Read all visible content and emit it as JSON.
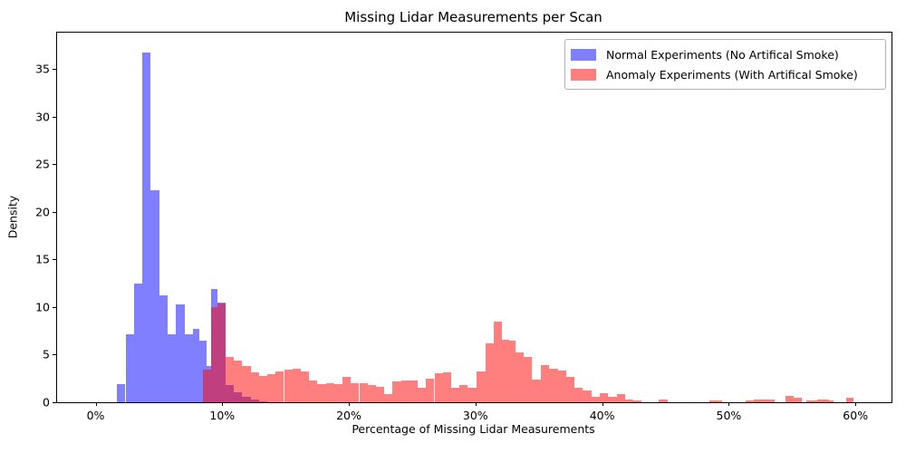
{
  "title": "Missing Lidar Measurements per Scan",
  "xlabel": "Percentage of Missing Lidar Measurements",
  "ylabel": "Density",
  "legend": [
    {
      "label": "Normal Experiments (No Artifical Smoke)",
      "color": "rgba(0,0,255,0.5)"
    },
    {
      "label": "Anomaly Experiments (With Artifical Smoke)",
      "color": "rgba(255,0,0,0.5)"
    }
  ],
  "chart_data": {
    "type": "bar",
    "subtype": "overlaid-histograms",
    "title": "Missing Lidar Measurements per Scan",
    "xlabel": "Percentage of Missing Lidar Measurements",
    "ylabel": "Density",
    "xlim": [
      -3.04,
      62.85
    ],
    "ylim": [
      0,
      38.8
    ],
    "grid": false,
    "legend_position": "upper right",
    "x_ticks": [
      {
        "value": 0,
        "label": "0%"
      },
      {
        "value": 10,
        "label": "10%"
      },
      {
        "value": 20,
        "label": "20%"
      },
      {
        "value": 30,
        "label": "30%"
      },
      {
        "value": 40,
        "label": "40%"
      },
      {
        "value": 50,
        "label": "50%"
      },
      {
        "value": 60,
        "label": "60%"
      }
    ],
    "y_ticks": [
      {
        "value": 0,
        "label": "0"
      },
      {
        "value": 5,
        "label": "5"
      },
      {
        "value": 10,
        "label": "10"
      },
      {
        "value": 15,
        "label": "15"
      },
      {
        "value": 20,
        "label": "20"
      },
      {
        "value": 25,
        "label": "25"
      },
      {
        "value": 30,
        "label": "30"
      },
      {
        "value": 35,
        "label": "35"
      }
    ],
    "series": [
      {
        "name": "Normal Experiments (No Artifical Smoke)",
        "color": "rgba(0,0,255,0.5)",
        "bars": [
          [
            1.7,
            2.36,
            1.9
          ],
          [
            2.36,
            3.03,
            7.1
          ],
          [
            3.03,
            3.69,
            12.5
          ],
          [
            3.69,
            4.36,
            36.7
          ],
          [
            4.36,
            5.02,
            22.3
          ],
          [
            5.02,
            5.69,
            11.2
          ],
          [
            5.69,
            6.35,
            7.1
          ],
          [
            6.35,
            7.02,
            10.3
          ],
          [
            7.02,
            7.68,
            7.1
          ],
          [
            7.68,
            8.21,
            7.7
          ],
          [
            8.21,
            8.73,
            6.5
          ],
          [
            8.73,
            9.1,
            3.8
          ],
          [
            9.1,
            9.62,
            11.9
          ],
          [
            9.62,
            10.26,
            10.5
          ],
          [
            10.26,
            10.92,
            1.8
          ],
          [
            10.92,
            11.58,
            1.05
          ],
          [
            11.58,
            12.24,
            0.55
          ],
          [
            12.24,
            12.9,
            0.25
          ],
          [
            12.9,
            13.56,
            0.1
          ]
        ]
      },
      {
        "name": "Anomaly Experiments (With Artifical Smoke)",
        "color": "rgba(255,0,0,0.5)",
        "bars": [
          [
            8.45,
            9.1,
            3.45
          ],
          [
            9.1,
            9.62,
            10.0
          ],
          [
            9.62,
            10.26,
            10.4
          ],
          [
            10.26,
            10.92,
            4.75
          ],
          [
            10.92,
            11.58,
            4.4
          ],
          [
            11.58,
            12.24,
            3.8
          ],
          [
            12.24,
            12.9,
            3.15
          ],
          [
            12.9,
            13.56,
            2.8
          ],
          [
            13.56,
            14.22,
            3.0
          ],
          [
            14.22,
            14.88,
            3.2
          ],
          [
            14.88,
            15.54,
            3.45
          ],
          [
            15.54,
            16.2,
            3.5
          ],
          [
            16.2,
            16.86,
            3.2
          ],
          [
            16.86,
            17.52,
            2.25
          ],
          [
            17.52,
            18.18,
            1.95
          ],
          [
            18.18,
            18.84,
            2.0
          ],
          [
            18.84,
            19.5,
            1.95
          ],
          [
            19.5,
            20.16,
            2.65
          ],
          [
            20.16,
            20.82,
            2.0
          ],
          [
            20.82,
            21.48,
            2.0
          ],
          [
            21.48,
            22.14,
            1.85
          ],
          [
            22.14,
            22.8,
            1.6
          ],
          [
            22.8,
            23.46,
            0.9
          ],
          [
            23.46,
            24.12,
            2.2
          ],
          [
            24.12,
            24.78,
            2.25
          ],
          [
            24.78,
            25.44,
            2.25
          ],
          [
            25.44,
            26.1,
            1.55
          ],
          [
            26.1,
            26.76,
            2.5
          ],
          [
            26.76,
            27.42,
            3.05
          ],
          [
            27.42,
            28.08,
            3.1
          ],
          [
            28.08,
            28.74,
            1.55
          ],
          [
            28.74,
            29.4,
            1.8
          ],
          [
            29.4,
            30.1,
            1.55
          ],
          [
            30.1,
            30.77,
            3.2
          ],
          [
            30.77,
            31.44,
            6.2
          ],
          [
            31.44,
            32.1,
            8.5
          ],
          [
            32.1,
            32.64,
            6.6
          ],
          [
            32.64,
            33.14,
            6.45
          ],
          [
            33.14,
            33.81,
            5.2
          ],
          [
            33.81,
            34.48,
            4.75
          ],
          [
            34.48,
            35.15,
            2.35
          ],
          [
            35.15,
            35.82,
            3.95
          ],
          [
            35.82,
            36.49,
            3.5
          ],
          [
            36.49,
            37.15,
            3.3
          ],
          [
            37.15,
            37.81,
            2.65
          ],
          [
            37.81,
            38.48,
            1.55
          ],
          [
            38.48,
            39.14,
            1.25
          ],
          [
            39.14,
            39.81,
            0.6
          ],
          [
            39.81,
            40.47,
            1.0
          ],
          [
            40.47,
            41.14,
            0.6
          ],
          [
            41.14,
            41.8,
            0.85
          ],
          [
            41.8,
            42.47,
            0.3
          ],
          [
            42.47,
            43.13,
            0.15
          ],
          [
            44.46,
            45.17,
            0.25
          ],
          [
            48.5,
            49.45,
            0.2
          ],
          [
            51.35,
            52.0,
            0.2
          ],
          [
            52.0,
            53.6,
            0.3
          ],
          [
            54.45,
            55.1,
            0.7
          ],
          [
            55.1,
            55.75,
            0.5
          ],
          [
            56.1,
            57.0,
            0.2
          ],
          [
            57.0,
            57.9,
            0.3
          ],
          [
            57.9,
            58.3,
            0.2
          ],
          [
            59.25,
            59.85,
            0.45
          ]
        ]
      }
    ]
  }
}
